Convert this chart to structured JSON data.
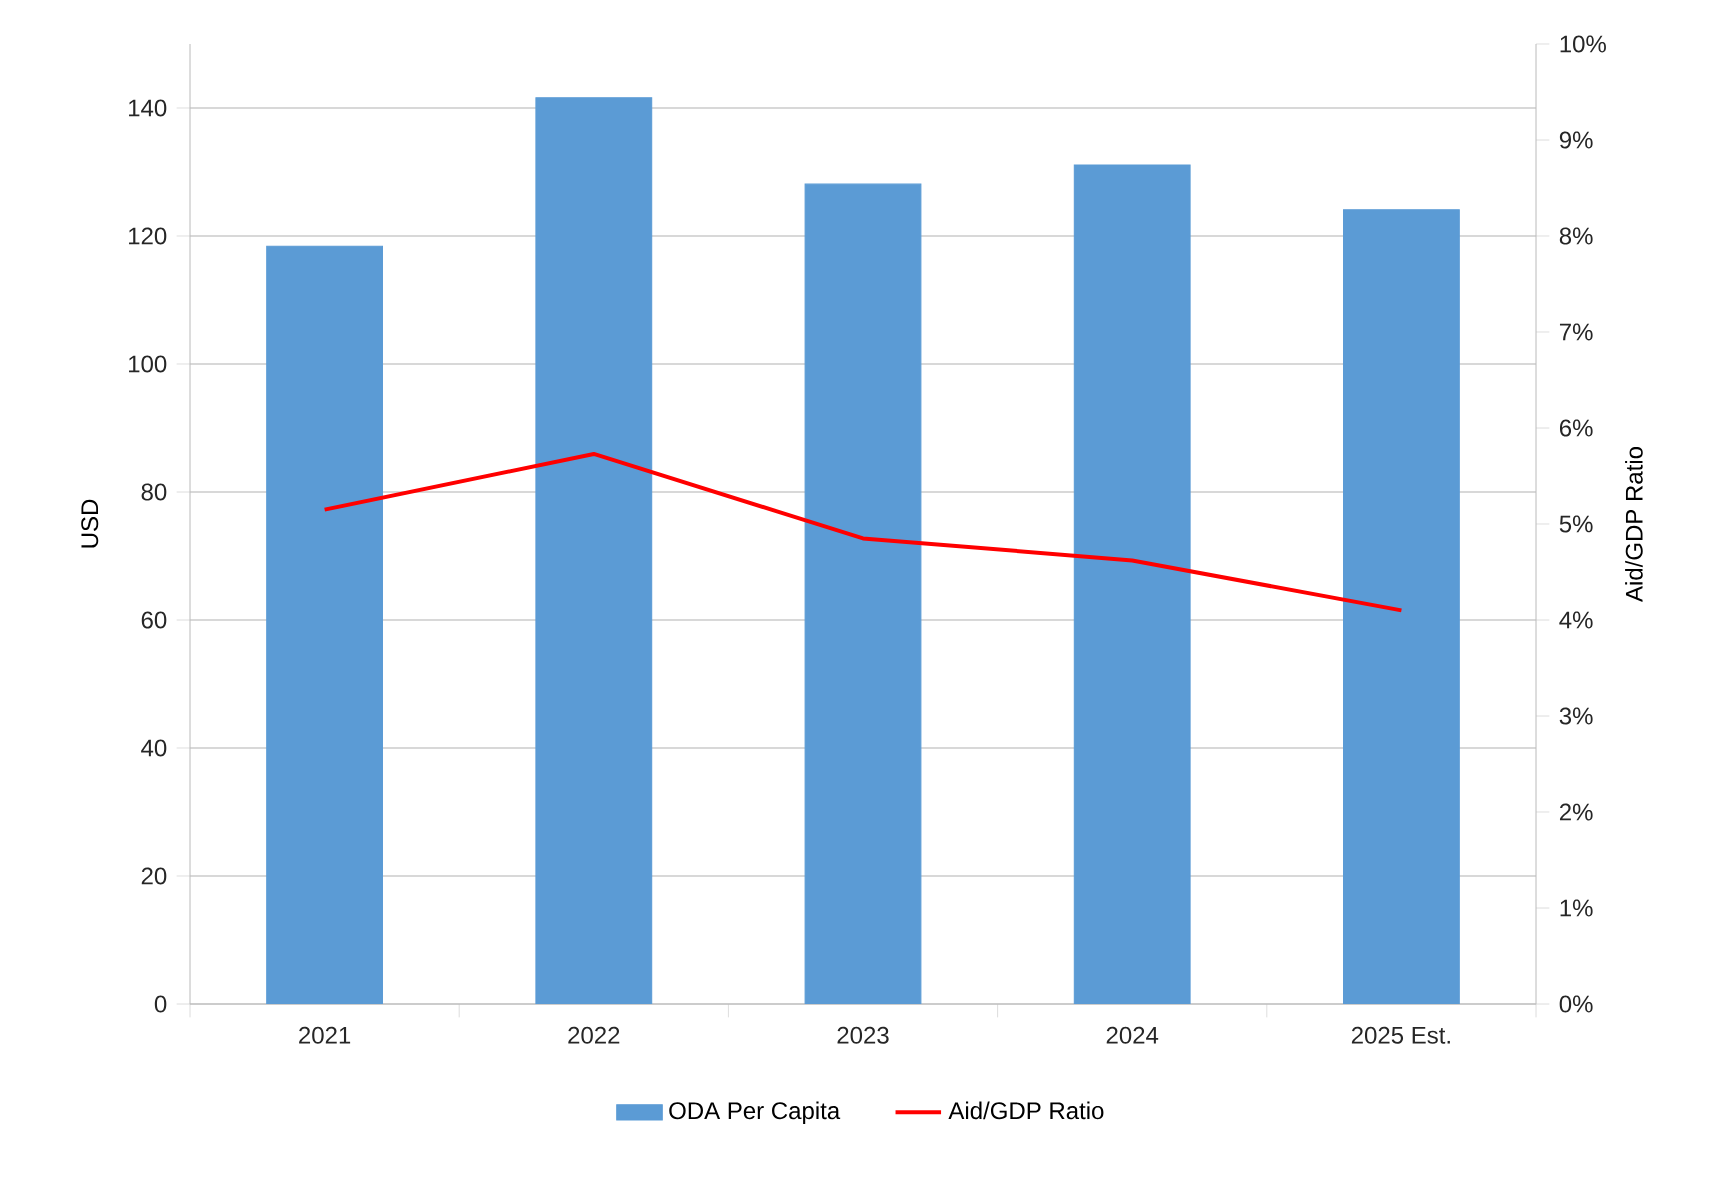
{
  "chart_data": {
    "type": "bar",
    "categories": [
      "2021",
      "2022",
      "2023",
      "2024",
      "2025 Est."
    ],
    "series": [
      {
        "name": "ODA Per Capita",
        "color": "#5b9bd5",
        "values": [
          118.4,
          141.6,
          128.1,
          131.1,
          124.1
        ]
      },
      {
        "name": "Aid/GDP Ratio",
        "type": "line",
        "axis": "y2",
        "color": "#ff0000",
        "values": [
          5.15,
          5.73,
          4.85,
          4.62,
          4.1
        ]
      }
    ],
    "ylabel": "USD",
    "y2label": "Aid/GDP Ratio",
    "ylim": [
      0,
      150
    ],
    "yticks": [
      0,
      20,
      40,
      60,
      80,
      100,
      120,
      140
    ],
    "y2lim": [
      0,
      10
    ],
    "y2ticks": [
      {
        "value": 0,
        "label": "0%"
      },
      {
        "value": 1,
        "label": "1%"
      },
      {
        "value": 2,
        "label": "2%"
      },
      {
        "value": 3,
        "label": "3%"
      },
      {
        "value": 4,
        "label": "4%"
      },
      {
        "value": 5,
        "label": "5%"
      },
      {
        "value": 6,
        "label": "6%"
      },
      {
        "value": 7,
        "label": "7%"
      },
      {
        "value": 8,
        "label": "8%"
      },
      {
        "value": 9,
        "label": "9%"
      },
      {
        "value": 10,
        "label": "10%"
      }
    ],
    "grid": "y",
    "legend": "bottom"
  }
}
